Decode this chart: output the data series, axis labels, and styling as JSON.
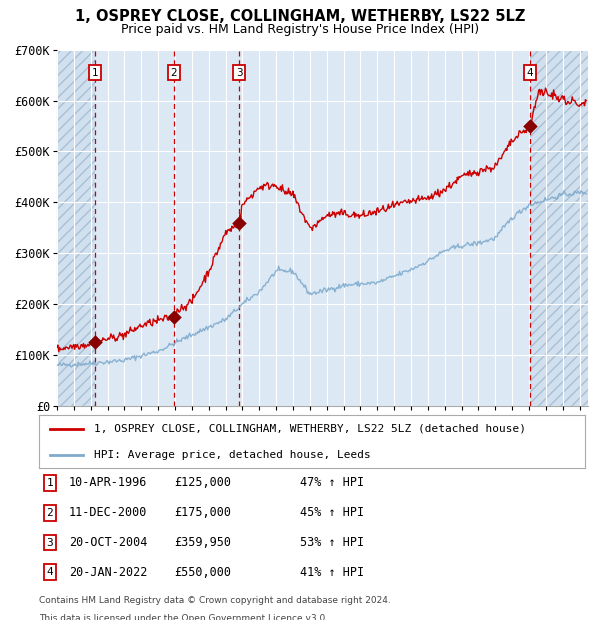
{
  "title": "1, OSPREY CLOSE, COLLINGHAM, WETHERBY, LS22 5LZ",
  "subtitle": "Price paid vs. HM Land Registry's House Price Index (HPI)",
  "ylim": [
    0,
    700000
  ],
  "yticks": [
    0,
    100000,
    200000,
    300000,
    400000,
    500000,
    600000,
    700000
  ],
  "ytick_labels": [
    "£0",
    "£100K",
    "£200K",
    "£300K",
    "£400K",
    "£500K",
    "£600K",
    "£700K"
  ],
  "xlim_start": 1994.0,
  "xlim_end": 2025.5,
  "sale_dates": [
    1996.27,
    2000.94,
    2004.8,
    2022.05
  ],
  "sale_prices": [
    125000,
    175000,
    359950,
    550000
  ],
  "sale_labels": [
    "1",
    "2",
    "3",
    "4"
  ],
  "sale_dates_text": [
    "10-APR-1996",
    "11-DEC-2000",
    "20-OCT-2004",
    "20-JAN-2022"
  ],
  "sale_prices_text": [
    "£125,000",
    "£175,000",
    "£359,950",
    "£550,000"
  ],
  "sale_hpi_text": [
    "47% ↑ HPI",
    "45% ↑ HPI",
    "53% ↑ HPI",
    "41% ↑ HPI"
  ],
  "legend_line1": "1, OSPREY CLOSE, COLLINGHAM, WETHERBY, LS22 5LZ (detached house)",
  "legend_line2": "HPI: Average price, detached house, Leeds",
  "red_line_color": "#cc0000",
  "blue_line_color": "#7faacc",
  "plot_bg": "#dce9f5",
  "grid_color": "#ffffff",
  "footnote1": "Contains HM Land Registry data © Crown copyright and database right 2024.",
  "footnote2": "This data is licensed under the Open Government Licence v3.0.",
  "hpi_years_anchors": [
    1994,
    1996,
    1998,
    2000,
    2002,
    2004,
    2005,
    2006,
    2007,
    2008,
    2009,
    2010,
    2011,
    2012,
    2013,
    2014,
    2015,
    2016,
    2017,
    2018,
    2019,
    2020,
    2021,
    2022,
    2023,
    2024,
    2025.3
  ],
  "hpi_vals_anchors": [
    80000,
    84000,
    90000,
    108000,
    140000,
    170000,
    200000,
    225000,
    265000,
    265000,
    220000,
    228000,
    237000,
    240000,
    242000,
    255000,
    268000,
    285000,
    305000,
    315000,
    320000,
    330000,
    370000,
    395000,
    405000,
    415000,
    420000
  ],
  "red_years_anchors": [
    1994,
    1995,
    1996.0,
    1996.27,
    1997,
    1998,
    1999,
    2000.0,
    2000.94,
    2001,
    2002,
    2003,
    2004.0,
    2004.8,
    2005,
    2006,
    2007,
    2007.5,
    2008,
    2009,
    2009.5,
    2010,
    2011,
    2012,
    2013,
    2014,
    2015,
    2016,
    2017,
    2018,
    2019,
    2020,
    2021,
    2022.05,
    2022.3,
    2022.6,
    2022.9,
    2023.0,
    2023.2,
    2023.5,
    2023.8,
    2024.0,
    2024.3,
    2024.6,
    2025.0,
    2025.3
  ],
  "red_vals_anchors": [
    112000,
    118000,
    122000,
    125000,
    132000,
    140000,
    158000,
    168000,
    175000,
    185000,
    205000,
    265000,
    340000,
    359950,
    395000,
    430000,
    435000,
    420000,
    415000,
    348000,
    360000,
    375000,
    378000,
    373000,
    382000,
    393000,
    402000,
    408000,
    425000,
    450000,
    462000,
    470000,
    520000,
    550000,
    580000,
    620000,
    610000,
    625000,
    605000,
    618000,
    598000,
    610000,
    592000,
    600000,
    588000,
    598000
  ]
}
